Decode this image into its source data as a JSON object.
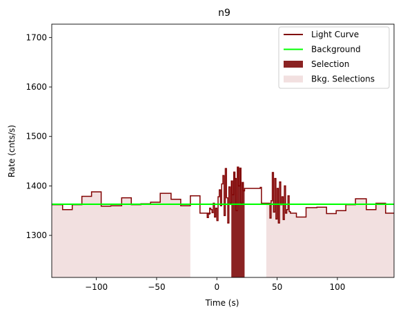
{
  "chart_data": {
    "type": "line",
    "title": "n9",
    "xlabel": "Time (s)",
    "ylabel": "Rate (cnts/s)",
    "xlim": [
      -137,
      147
    ],
    "ylim": [
      1215,
      1727
    ],
    "xticks": [
      -100,
      -50,
      0,
      50,
      100
    ],
    "yticks": [
      1300,
      1400,
      1500,
      1600,
      1700
    ],
    "grid": false,
    "legend_position": "top-right",
    "colors": {
      "light_curve": "#800000",
      "background": "#00ff00",
      "selection": "#8b2323",
      "bkg_selection": "#f2e0e0"
    },
    "legend": [
      {
        "label": "Light Curve",
        "kind": "line",
        "color": "#800000"
      },
      {
        "label": "Background",
        "kind": "line",
        "color": "#00ff00"
      },
      {
        "label": "Selection",
        "kind": "patch",
        "color": "#8b2323"
      },
      {
        "label": "Bkg. Selections",
        "kind": "patch",
        "color": "#f2e0e0"
      }
    ],
    "background_level": 1363,
    "bkg_selections": [
      [
        -137,
        -22
      ],
      [
        41,
        147
      ]
    ],
    "selection_range": [
      12,
      23
    ],
    "light_curve_steps": [
      [
        -137,
        1362
      ],
      [
        -128,
        1352
      ],
      [
        -120,
        1362
      ],
      [
        -112,
        1379
      ],
      [
        -104,
        1388
      ],
      [
        -96,
        1359
      ],
      [
        -88,
        1360
      ],
      [
        -79,
        1376
      ],
      [
        -71,
        1362
      ],
      [
        -63,
        1364
      ],
      [
        -55,
        1367
      ],
      [
        -47,
        1385
      ],
      [
        -38,
        1373
      ],
      [
        -30,
        1360
      ],
      [
        -22,
        1380
      ],
      [
        -14,
        1345
      ],
      [
        -8,
        1345
      ],
      [
        -5,
        1345
      ],
      [
        -9,
        1345
      ],
      [
        -8,
        1345
      ],
      [
        -8,
        1336
      ],
      [
        -7,
        1343
      ],
      [
        -6,
        1355
      ],
      [
        -5,
        1352
      ],
      [
        -4,
        1346
      ],
      [
        -3,
        1365
      ],
      [
        -2,
        1337
      ],
      [
        -1,
        1355
      ],
      [
        0,
        1330
      ],
      [
        1,
        1378
      ],
      [
        2,
        1392
      ],
      [
        3,
        1360
      ],
      [
        4,
        1404
      ],
      [
        5,
        1421
      ],
      [
        6,
        1340
      ],
      [
        7,
        1435
      ],
      [
        8,
        1376
      ],
      [
        9,
        1325
      ],
      [
        10,
        1398
      ],
      [
        11,
        1365
      ],
      [
        12,
        1410
      ],
      [
        13,
        1382
      ],
      [
        14,
        1428
      ],
      [
        15,
        1415
      ],
      [
        16,
        1350
      ],
      [
        17,
        1438
      ],
      [
        18,
        1400
      ],
      [
        19,
        1436
      ],
      [
        20,
        1365
      ],
      [
        21,
        1407
      ],
      [
        22,
        1390
      ],
      [
        23,
        1395
      ],
      [
        36,
        1397
      ],
      [
        37,
        1365
      ],
      [
        44,
        1335
      ],
      [
        45,
        1370
      ],
      [
        46,
        1427
      ],
      [
        47,
        1347
      ],
      [
        48,
        1415
      ],
      [
        49,
        1333
      ],
      [
        50,
        1395
      ],
      [
        51,
        1325
      ],
      [
        52,
        1408
      ],
      [
        53,
        1362
      ],
      [
        54,
        1378
      ],
      [
        55,
        1332
      ],
      [
        56,
        1400
      ],
      [
        57,
        1345
      ],
      [
        58,
        1352
      ],
      [
        59,
        1380
      ],
      [
        60,
        1348
      ],
      [
        61,
        1345
      ],
      [
        66,
        1337
      ],
      [
        74,
        1356
      ],
      [
        83,
        1357
      ],
      [
        91,
        1344
      ],
      [
        99,
        1350
      ],
      [
        107,
        1362
      ],
      [
        115,
        1374
      ],
      [
        124,
        1352
      ],
      [
        132,
        1365
      ],
      [
        140,
        1345
      ],
      [
        147,
        1345
      ]
    ]
  }
}
